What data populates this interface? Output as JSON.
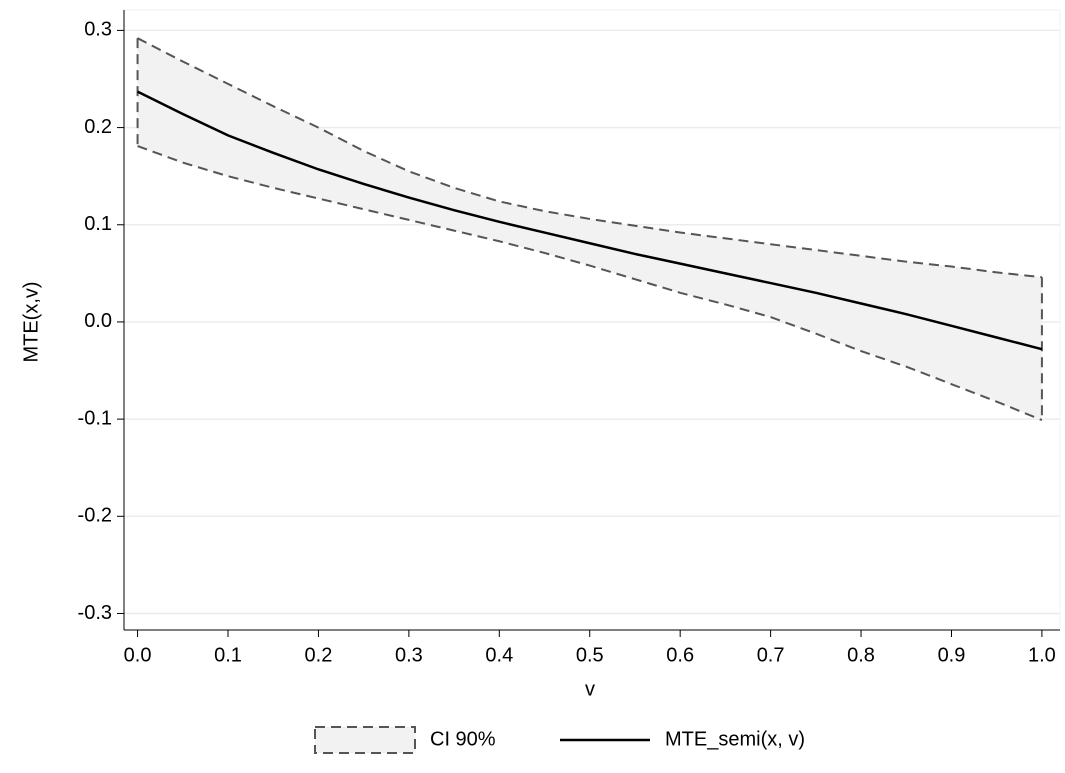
{
  "chart_data": {
    "type": "line",
    "xlabel": "v",
    "ylabel": "MTE(x,v)",
    "x": [
      0,
      0.05,
      0.1,
      0.15,
      0.2,
      0.25,
      0.3,
      0.35,
      0.4,
      0.45,
      0.5,
      0.55,
      0.6,
      0.65,
      0.7,
      0.75,
      0.8,
      0.85,
      0.9,
      0.95,
      1
    ],
    "series": [
      {
        "name": "CI 90%",
        "type": "band",
        "color": "#f2f2f2",
        "line_color": "#555555",
        "upper": [
          0.292,
          0.268,
          0.245,
          0.222,
          0.2,
          0.176,
          0.155,
          0.138,
          0.124,
          0.114,
          0.106,
          0.099,
          0.092,
          0.086,
          0.08,
          0.074,
          0.068,
          0.062,
          0.057,
          0.051,
          0.046
        ],
        "lower": [
          0.181,
          0.164,
          0.15,
          0.138,
          0.127,
          0.116,
          0.105,
          0.094,
          0.083,
          0.071,
          0.058,
          0.044,
          0.03,
          0.018,
          0.005,
          -0.012,
          -0.03,
          -0.046,
          -0.064,
          -0.082,
          -0.101
        ]
      },
      {
        "name": "MTE_semi(x, v)",
        "type": "line",
        "color": "#000000",
        "values": [
          0.237,
          0.214,
          0.192,
          0.174,
          0.157,
          0.142,
          0.128,
          0.115,
          0.103,
          0.092,
          0.081,
          0.07,
          0.06,
          0.05,
          0.04,
          0.03,
          0.019,
          0.008,
          -0.004,
          -0.016,
          -0.028
        ]
      }
    ],
    "xlim": [
      -0.015,
      1.02
    ],
    "ylim": [
      -0.317,
      0.321
    ],
    "xticks": [
      {
        "value": 0,
        "label": "0.0"
      },
      0.1,
      0.2,
      0.3,
      0.4,
      0.5,
      0.6,
      0.7,
      0.8,
      0.9,
      {
        "value": 1,
        "label": "1.0"
      }
    ],
    "yticks": [
      -0.3,
      -0.2,
      -0.1,
      {
        "value": 0,
        "label": "0.0"
      },
      0.1,
      0.2,
      0.3
    ],
    "grid": true,
    "legend": "bottom"
  }
}
